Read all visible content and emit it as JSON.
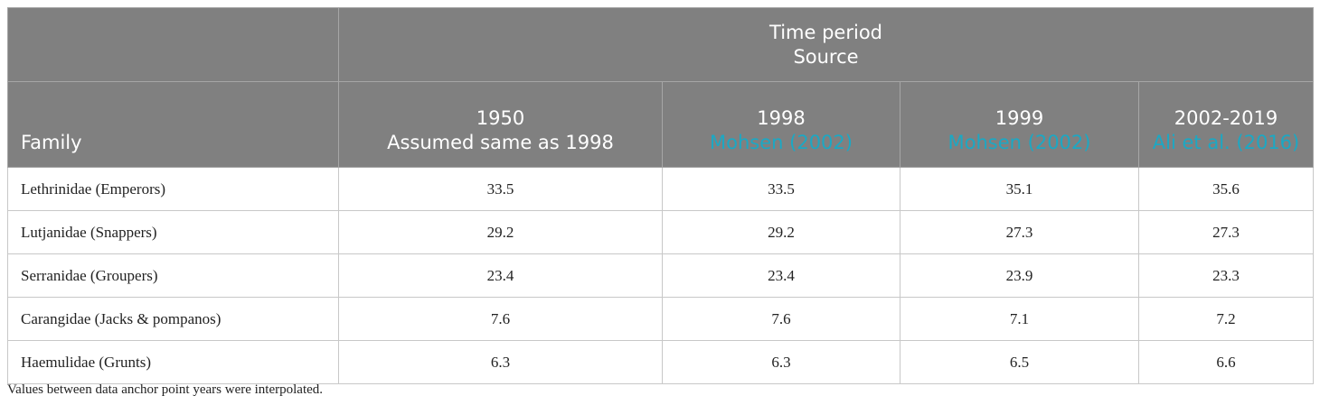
{
  "header": {
    "family_label": "Family",
    "time_period_label": "Time period",
    "source_label": "Source",
    "columns": [
      {
        "year": "1950",
        "source": "Assumed same as 1998",
        "source_is_link": false
      },
      {
        "year": "1998",
        "source": "Mohsen (2002)",
        "source_is_link": true
      },
      {
        "year": "1999",
        "source": "Mohsen (2002)",
        "source_is_link": true
      },
      {
        "year": "2002-2019",
        "source": "Ali et al. (2016)",
        "source_is_link": true
      }
    ]
  },
  "rows": [
    {
      "family": "Lethrinidae (Emperors)",
      "values": [
        "33.5",
        "33.5",
        "35.1",
        "35.6"
      ]
    },
    {
      "family": "Lutjanidae (Snappers)",
      "values": [
        "29.2",
        "29.2",
        "27.3",
        "27.3"
      ]
    },
    {
      "family": "Serranidae (Groupers)",
      "values": [
        "23.4",
        "23.4",
        "23.9",
        "23.3"
      ]
    },
    {
      "family": "Carangidae (Jacks & pompanos)",
      "values": [
        "7.6",
        "7.6",
        "7.1",
        "7.2"
      ]
    },
    {
      "family": "Haemulidae (Grunts)",
      "values": [
        "6.3",
        "6.3",
        "6.5",
        "6.6"
      ]
    }
  ],
  "footnote": "Values between data anchor point years were interpolated.",
  "colors": {
    "header_bg": "#808080",
    "link": "#1ba8c4"
  }
}
